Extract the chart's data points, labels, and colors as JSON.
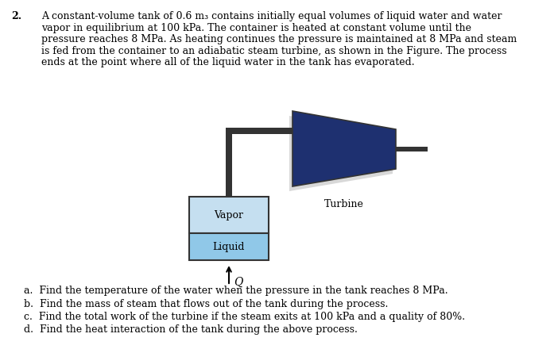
{
  "problem_number": "2.",
  "problem_text_lines": [
    "A constant-volume tank of 0.6 m₃ contains initially equal volumes of liquid water and water",
    "vapor in equilibrium at 100 kPa. The container is heated at constant volume until the",
    "pressure reaches 8 MPa. As heating continues the pressure is maintained at 8 MPa and steam",
    "is fed from the container to an adiabatic steam turbine, as shown in the Figure. The process",
    "ends at the point where all of the liquid water in the tank has evaporated."
  ],
  "questions": [
    "a.  Find the temperature of the water when the pressure in the tank reaches 8 MPa.",
    "b.  Find the mass of steam that flows out of the tank during the process.",
    "c.  Find the total work of the turbine if the steam exits at 100 kPa and a quality of 80%.",
    "d.  Find the heat interaction of the tank during the above process."
  ],
  "vapor_label": "Vapor",
  "liquid_label": "Liquid",
  "turbine_label": "Turbine",
  "q_label": "Q",
  "vapor_color": "#c5dff0",
  "liquid_color": "#90c8e8",
  "tank_border_color": "#333333",
  "turbine_color": "#1e3070",
  "turbine_shadow_color": "#d8d8d8",
  "pipe_color": "#333333",
  "bg_color": "#ffffff",
  "font_family": "DejaVu Serif",
  "text_fontsize": 9.0,
  "label_fontsize": 9.0,
  "question_fontsize": 9.0
}
